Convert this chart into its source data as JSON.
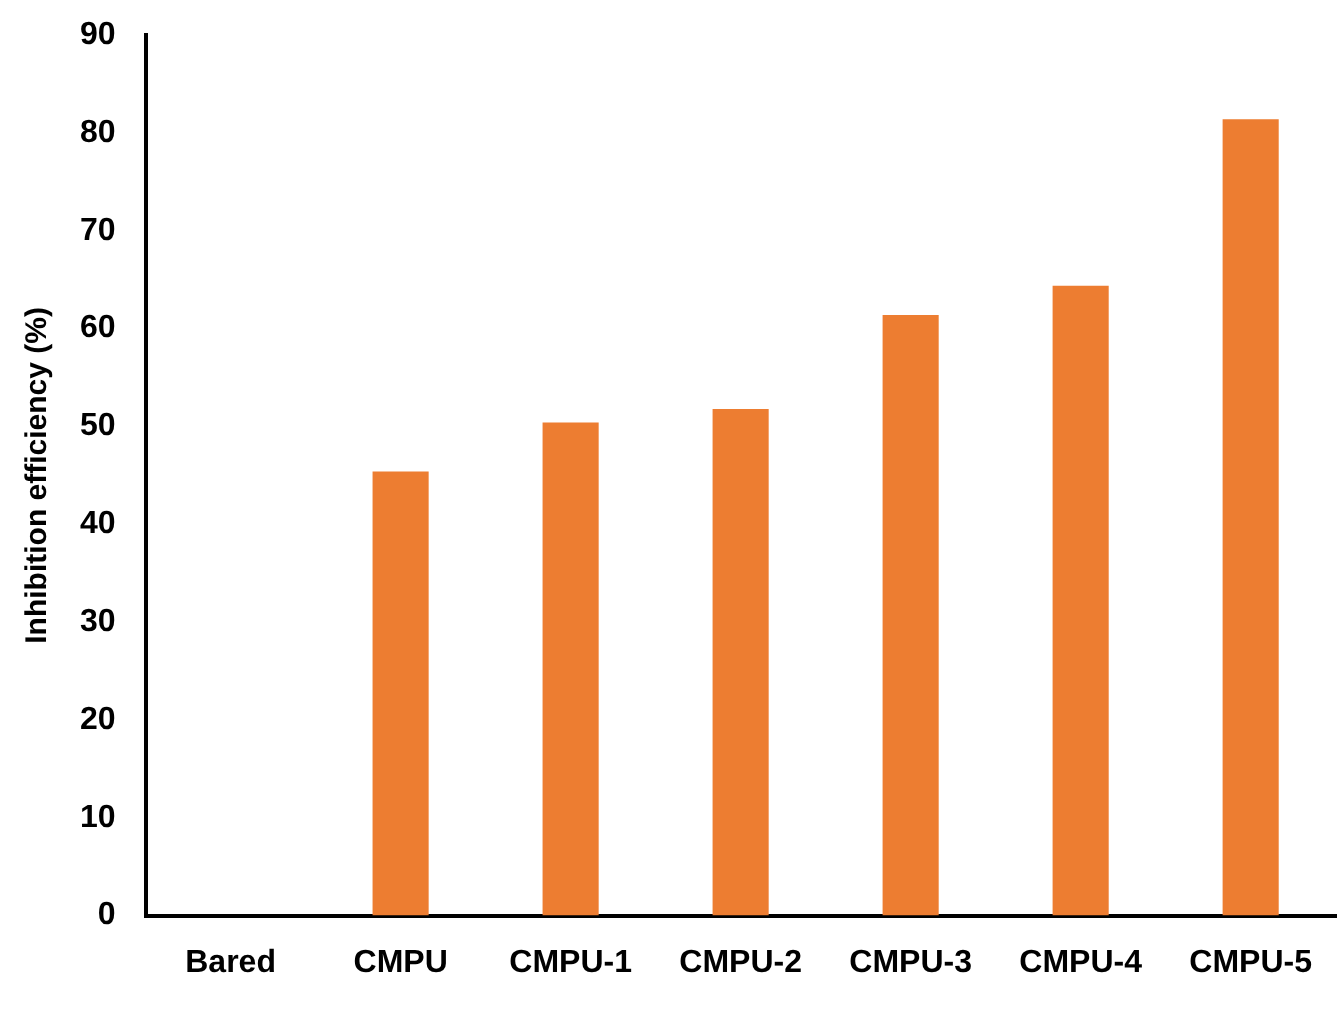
{
  "chart_data": {
    "type": "bar",
    "ylabel": "Inhibition efficiency (%)",
    "categories": [
      "Bared",
      "CMPU",
      "CMPU-1",
      "CMPU-2",
      "CMPU-3",
      "CMPU-4",
      "CMPU-5"
    ],
    "values": [
      0,
      45.4,
      50.4,
      51.8,
      61.4,
      64.4,
      81.4
    ],
    "color": "#ed7d31",
    "ylim": [
      0,
      90
    ],
    "yticks": [
      0,
      10,
      20,
      30,
      40,
      50,
      60,
      70,
      80,
      90
    ],
    "grid": false,
    "legend": false
  }
}
